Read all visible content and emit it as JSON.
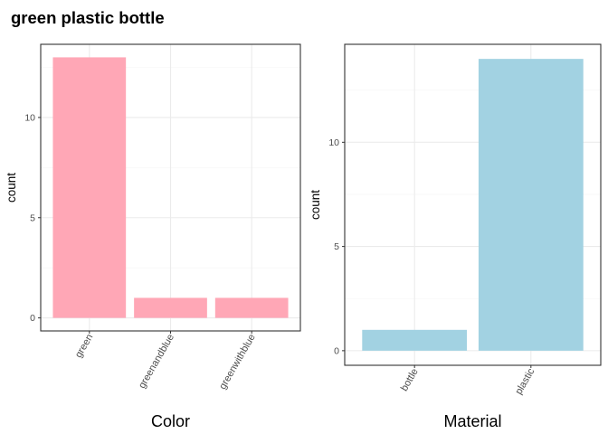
{
  "title": "green plastic bottle",
  "colors": {
    "pink_bar": "#FFA7B6",
    "blue_bar": "#A2D2E2",
    "grid_major": "#EBEBEB",
    "grid_minor": "#F5F5F5",
    "panel_border": "#333333",
    "tick_text": "#4D4D4D"
  },
  "chart_data": [
    {
      "type": "bar",
      "categories": [
        "green",
        "greenandblue",
        "greenwithblue"
      ],
      "values": [
        13,
        1,
        1
      ],
      "xlabel": "Color",
      "ylabel": "count",
      "ylim": [
        -0.65,
        13.65
      ],
      "yticks": [
        0,
        5,
        10
      ],
      "bar_color": "#FFA7B6",
      "grid": true
    },
    {
      "type": "bar",
      "categories": [
        "bottle",
        "plastic"
      ],
      "values": [
        1,
        14
      ],
      "xlabel": "Material",
      "ylabel": "count",
      "ylim": [
        -0.7,
        14.7
      ],
      "yticks": [
        0,
        5,
        10
      ],
      "bar_color": "#A2D2E2",
      "grid": true
    }
  ]
}
